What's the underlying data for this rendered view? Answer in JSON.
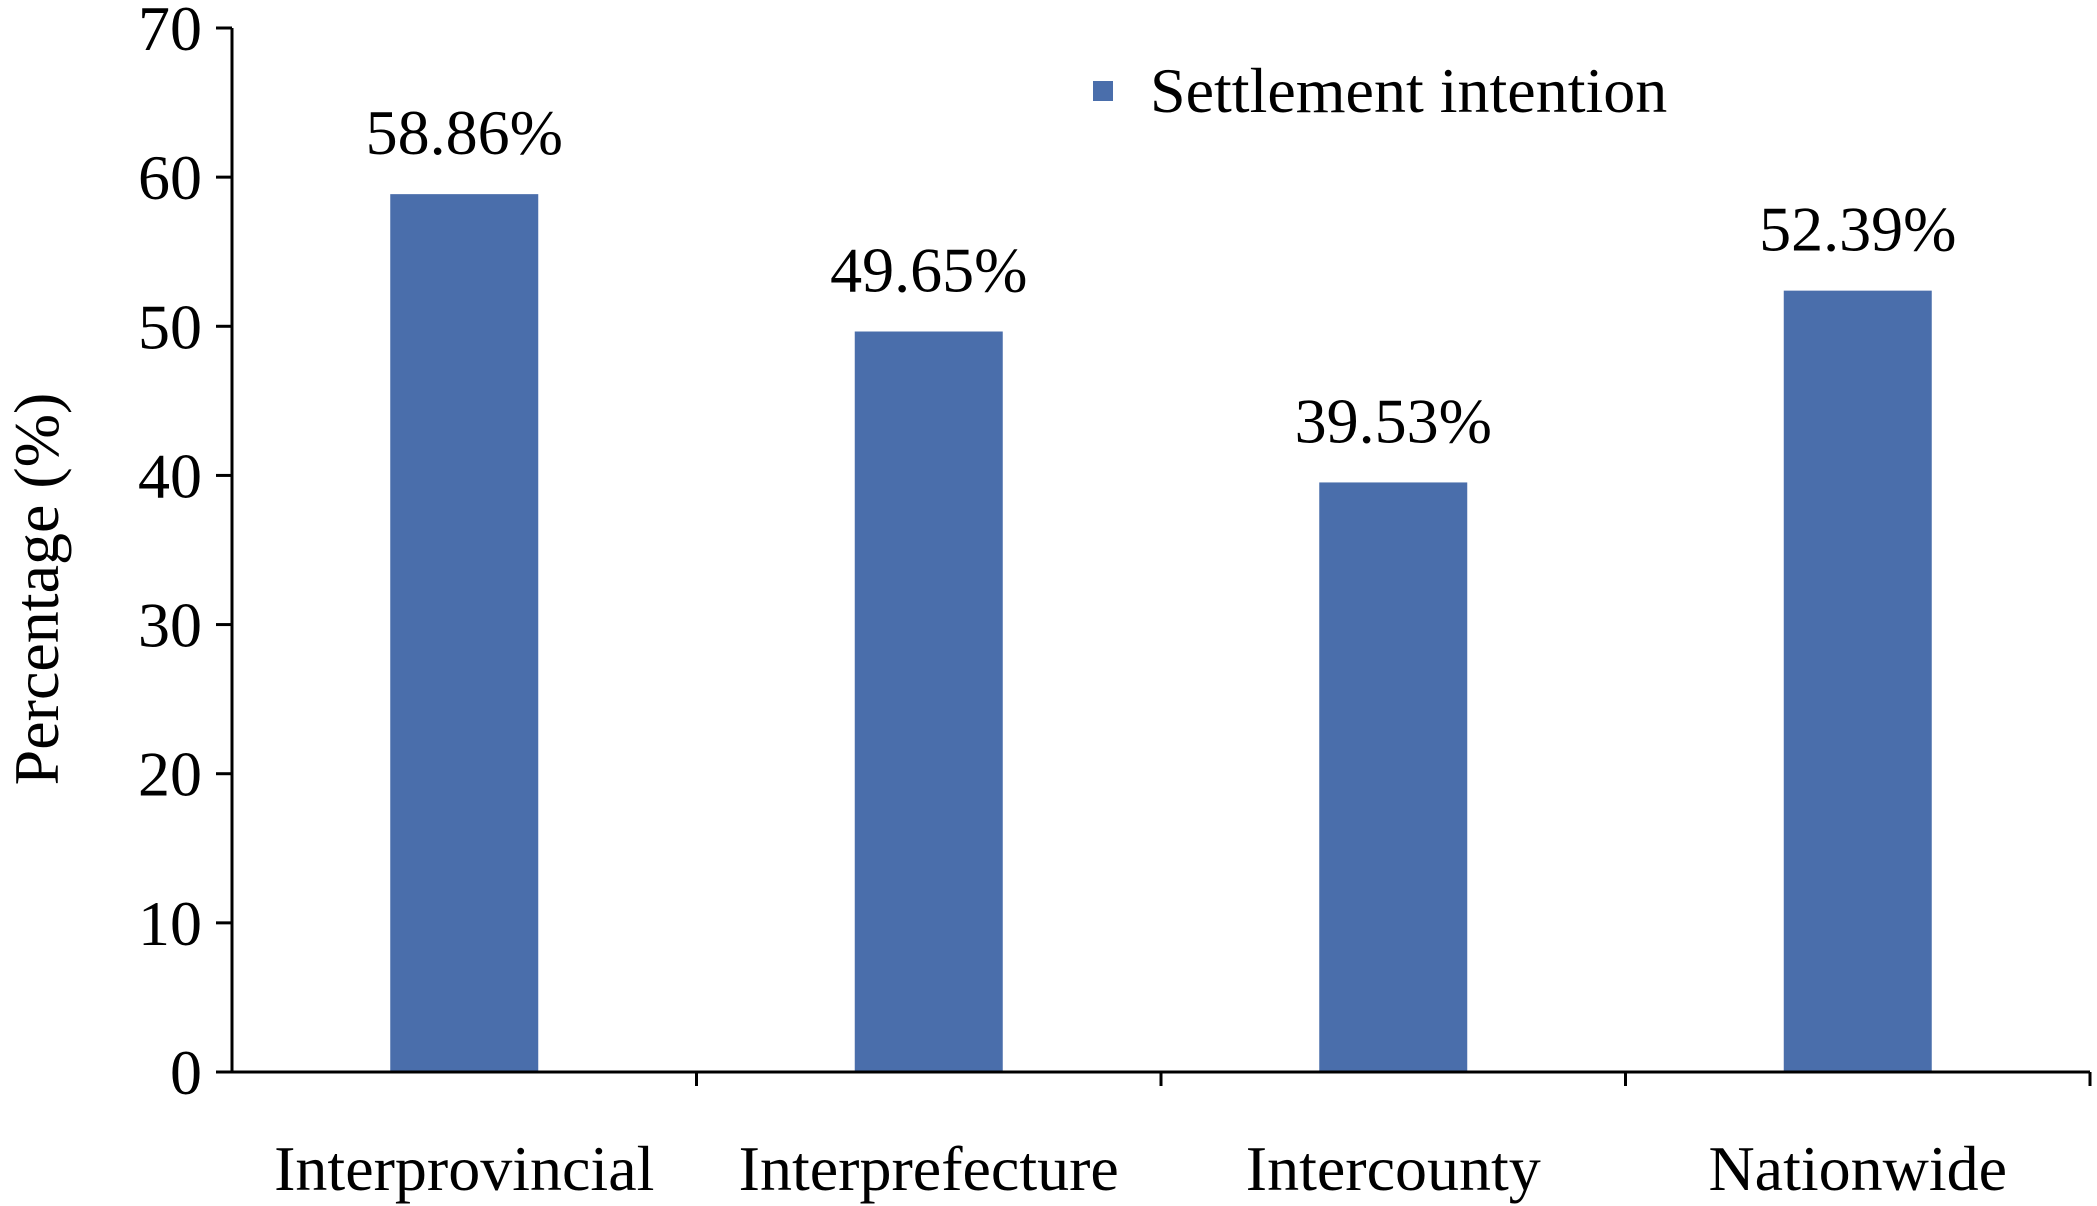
{
  "chart_data": {
    "type": "bar",
    "categories": [
      "Interprovincial",
      "Interprefecture",
      "Intercounty",
      "Nationwide"
    ],
    "series": [
      {
        "name": "Settlement intention",
        "values": [
          58.86,
          49.65,
          39.53,
          52.39
        ],
        "labels": [
          "58.86%",
          "49.65%",
          "39.53%",
          "52.39%"
        ],
        "color": "#4a6eab"
      }
    ],
    "ylabel": "Percentage (%)",
    "xlabel": "",
    "ylim": [
      0,
      70
    ],
    "yticks": [
      "0",
      "10",
      "20",
      "30",
      "40",
      "50",
      "60",
      "70"
    ],
    "grid": false,
    "legend": "top-right"
  }
}
